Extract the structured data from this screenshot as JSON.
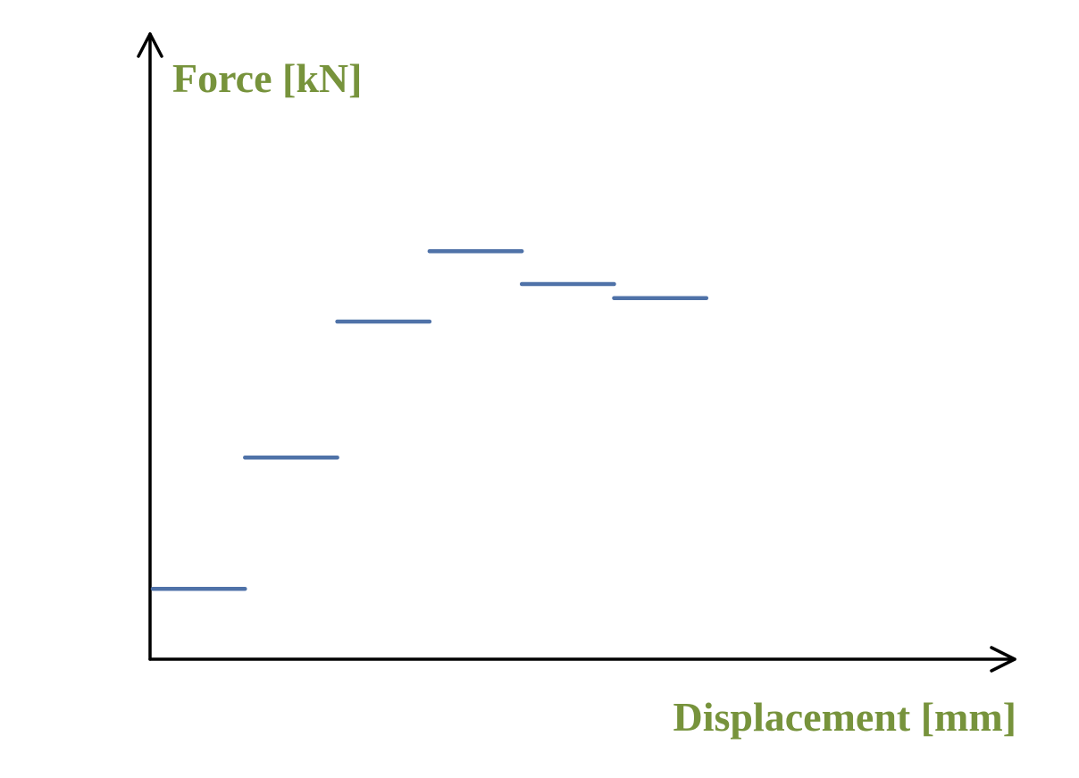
{
  "chart_data": {
    "type": "line",
    "style": "step-segments",
    "xlabel": "Displacement [mm]",
    "ylabel": "Force [kN]",
    "title": "",
    "tick_labels_shown": false,
    "grid": false,
    "legend": "none",
    "x_range": [
      0,
      9.3
    ],
    "y_range": [
      0,
      7
    ],
    "segments": [
      {
        "x_start": 0.0,
        "x_end": 1.0,
        "y": 0.75
      },
      {
        "x_start": 1.0,
        "x_end": 2.0,
        "y": 2.15
      },
      {
        "x_start": 2.0,
        "x_end": 3.0,
        "y": 3.6
      },
      {
        "x_start": 3.0,
        "x_end": 4.0,
        "y": 4.35
      },
      {
        "x_start": 4.0,
        "x_end": 5.0,
        "y": 4.0
      },
      {
        "x_start": 5.0,
        "x_end": 6.0,
        "y": 3.85
      }
    ],
    "colors": {
      "series": "#4f72a8",
      "axis_labels": "#77933c",
      "axes": "#000000"
    }
  }
}
